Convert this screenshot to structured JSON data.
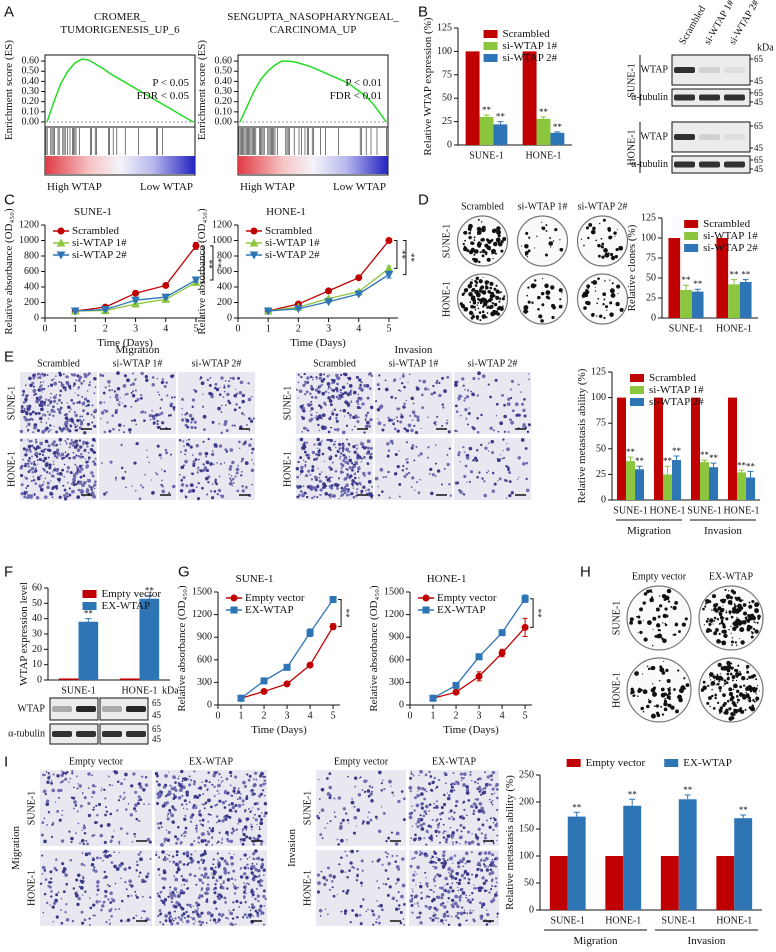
{
  "panel_letters": [
    "A",
    "B",
    "C",
    "D",
    "E",
    "F",
    "G",
    "H",
    "I"
  ],
  "chart_data": [
    {
      "type": "gsea",
      "title": [
        "CROMER_",
        "TUMORIGENESIS_UP_6"
      ],
      "y_label": "Enrichment score (ES)",
      "annotations": [
        "P < 0.05",
        "FDR < 0.05"
      ],
      "x_labels": [
        "High WTAP",
        "Low WTAP"
      ],
      "color": "#22dd22",
      "ylim": [
        -0.03,
        0.66
      ],
      "yticks": [
        {
          "value": 0,
          "label": "0.00"
        },
        {
          "value": 0.1,
          "label": "0.10"
        },
        {
          "value": 0.2,
          "label": "0.20"
        },
        {
          "value": 0.3,
          "label": "0.30"
        },
        {
          "value": 0.4,
          "label": "0.40"
        },
        {
          "value": 0.5,
          "label": "0.50"
        },
        {
          "value": 0.6,
          "label": "0.60"
        }
      ],
      "values": [
        0,
        0.2,
        0.38,
        0.5,
        0.58,
        0.62,
        0.61,
        0.57,
        0.53,
        0.48,
        0.44,
        0.4,
        0.36,
        0.32,
        0.28,
        0.24,
        0.2,
        0.16,
        0.12,
        0.08,
        0.04,
        0.0
      ]
    },
    {
      "type": "gsea",
      "title": [
        "SENGUPTA_NASOPHARYNGEAL_",
        "CARCINOMA_UP"
      ],
      "y_label": "Enrichment score (ES)",
      "annotations": [
        "P < 0.01",
        "FDR < 0.01"
      ],
      "x_labels": [
        "High WTAP",
        "Low WTAP"
      ],
      "color": "#22dd22",
      "ylim": [
        -0.03,
        0.66
      ],
      "yticks": [
        {
          "value": 0,
          "label": "0.00"
        },
        {
          "value": 0.1,
          "label": "0.10"
        },
        {
          "value": 0.2,
          "label": "0.20"
        },
        {
          "value": 0.3,
          "label": "0.30"
        },
        {
          "value": 0.4,
          "label": "0.40"
        },
        {
          "value": 0.5,
          "label": "0.50"
        },
        {
          "value": 0.6,
          "label": "0.60"
        }
      ],
      "values": [
        0,
        0.15,
        0.3,
        0.42,
        0.5,
        0.56,
        0.6,
        0.6,
        0.59,
        0.57,
        0.55,
        0.52,
        0.49,
        0.46,
        0.43,
        0.4,
        0.36,
        0.31,
        0.26,
        0.19,
        0.1,
        0.0
      ]
    },
    {
      "type": "bar",
      "y_label": "Relative WTAP expression (%)",
      "categories": [
        "SUNE-1",
        "HONE-1"
      ],
      "ylim": [
        0,
        125
      ],
      "yticks": [
        0,
        25,
        50,
        75,
        100,
        125
      ],
      "legend": "top-left",
      "series": [
        {
          "name": "Scrambled",
          "color": "#c00000",
          "values": [
            100,
            100
          ]
        },
        {
          "name": "si-WTAP 1#",
          "color": "#8cc63f",
          "values": [
            30,
            28
          ],
          "errors": [
            2,
            2
          ],
          "significance": [
            "**",
            "**"
          ]
        },
        {
          "name": "si-WTAP 2#",
          "color": "#2e75b6",
          "values": [
            22,
            13
          ],
          "errors": [
            3,
            1
          ],
          "significance": [
            "**",
            "**"
          ]
        }
      ]
    },
    {
      "type": "line",
      "title": "SUNE-1",
      "x_label": "Time (Days)",
      "y_label": "Relative absorbance (OD₄₅₀)",
      "x": [
        1,
        2,
        3,
        4,
        5
      ],
      "xlim": [
        0,
        5.3
      ],
      "xticks": [
        0,
        1,
        2,
        3,
        4,
        5
      ],
      "ylim": [
        0,
        1200
      ],
      "yticks": [
        0,
        200,
        400,
        600,
        800,
        1000,
        1200
      ],
      "legend": "top-left",
      "significance": [
        "**",
        "**"
      ],
      "series": [
        {
          "name": "Scrambled",
          "color": "#c00000",
          "marker": "circle",
          "values": [
            90,
            140,
            320,
            420,
            930
          ],
          "errors": [
            8,
            10,
            25,
            15,
            45
          ]
        },
        {
          "name": "si-WTAP 1#",
          "color": "#8cc63f",
          "marker": "triangle",
          "values": [
            90,
            95,
            180,
            240,
            460
          ],
          "errors": [
            8,
            8,
            12,
            15,
            20
          ]
        },
        {
          "name": "si-WTAP 2#",
          "color": "#2e75b6",
          "marker": "triangle-down",
          "values": [
            90,
            110,
            230,
            270,
            490
          ],
          "errors": [
            8,
            10,
            15,
            15,
            25
          ]
        }
      ]
    },
    {
      "type": "line",
      "title": "HONE-1",
      "x_label": "Time (Days)",
      "y_label": "Relative absorbance (OD₄₅₀)",
      "x": [
        1,
        2,
        3,
        4,
        5
      ],
      "xlim": [
        0,
        5.3
      ],
      "xticks": [
        0,
        1,
        2,
        3,
        4,
        5
      ],
      "ylim": [
        0,
        1200
      ],
      "yticks": [
        0,
        200,
        400,
        600,
        800,
        1000,
        1200
      ],
      "legend": "top-left",
      "significance": [
        "**",
        "**"
      ],
      "series": [
        {
          "name": "Scrambled",
          "color": "#c00000",
          "marker": "circle",
          "values": [
            90,
            180,
            350,
            520,
            1000
          ],
          "errors": [
            8,
            10,
            15,
            15,
            15
          ]
        },
        {
          "name": "si-WTAP 1#",
          "color": "#8cc63f",
          "marker": "triangle",
          "values": [
            90,
            140,
            250,
            340,
            640
          ],
          "errors": [
            8,
            10,
            12,
            15,
            30
          ]
        },
        {
          "name": "si-WTAP 2#",
          "color": "#2e75b6",
          "marker": "triangle-down",
          "values": [
            90,
            120,
            210,
            310,
            560
          ],
          "errors": [
            8,
            10,
            12,
            15,
            45
          ]
        }
      ]
    },
    {
      "type": "bar",
      "y_label": "Relative clones (%)",
      "categories": [
        "SUNE-1",
        "HONE-1"
      ],
      "ylim": [
        0,
        125
      ],
      "yticks": [
        0,
        25,
        50,
        75,
        100,
        125
      ],
      "legend": "top-left",
      "series": [
        {
          "name": "Scrambled",
          "color": "#c00000",
          "values": [
            100,
            100
          ]
        },
        {
          "name": "si-WTAP 1#",
          "color": "#8cc63f",
          "values": [
            35,
            42
          ],
          "errors": [
            6,
            6
          ],
          "significance": [
            "**",
            "**"
          ]
        },
        {
          "name": "si-WTAP 2#",
          "color": "#2e75b6",
          "values": [
            33,
            45
          ],
          "errors": [
            3,
            3
          ],
          "significance": [
            "**",
            "**"
          ]
        }
      ]
    },
    {
      "type": "bar",
      "y_label": "Relative metastasis ability (%)",
      "categories": [
        "SUNE-1",
        "HONE-1",
        "SUNE-1",
        "HONE-1"
      ],
      "group_labels": [
        "Migration",
        "Invasion"
      ],
      "ylim": [
        0,
        125
      ],
      "yticks": [
        0,
        25,
        50,
        75,
        100,
        125
      ],
      "legend": "top-left",
      "series": [
        {
          "name": "Scrambled",
          "color": "#c00000",
          "values": [
            100,
            100,
            100,
            100
          ]
        },
        {
          "name": "si-WTAP 1#",
          "color": "#8cc63f",
          "values": [
            38,
            25,
            37,
            27
          ],
          "errors": [
            4,
            8,
            2,
            2
          ],
          "significance": [
            "**",
            "**",
            "**",
            "**"
          ]
        },
        {
          "name": "si-WTAP 2#",
          "color": "#2e75b6",
          "values": [
            30,
            39,
            32,
            22
          ],
          "errors": [
            3,
            4,
            4,
            6
          ],
          "significance": [
            "**",
            "**",
            "**",
            "**"
          ]
        }
      ]
    },
    {
      "type": "bar",
      "y_label": "WTAP expression level",
      "categories": [
        "SUNE-1",
        "HONE-1"
      ],
      "ylim": [
        0,
        60
      ],
      "yticks": [
        0,
        10,
        20,
        30,
        40,
        50,
        60
      ],
      "legend": "top-left",
      "series": [
        {
          "name": "Empty vector",
          "color": "#c00000",
          "values": [
            1,
            1
          ]
        },
        {
          "name": "EX-WTAP",
          "color": "#2e75b6",
          "values": [
            38,
            53
          ],
          "errors": [
            2,
            2
          ],
          "significance": [
            "**",
            "**"
          ]
        }
      ]
    },
    {
      "type": "line",
      "title": "SUNE-1",
      "x_label": "Time (Days)",
      "y_label": "Relative absorbance (OD₄₅₀)",
      "x": [
        1,
        2,
        3,
        4,
        5
      ],
      "xlim": [
        0,
        5.3
      ],
      "xticks": [
        0,
        1,
        2,
        3,
        4,
        5
      ],
      "ylim": [
        0,
        1500
      ],
      "yticks": [
        0,
        300,
        600,
        900,
        1200,
        1500
      ],
      "legend": "top-left",
      "significance": [
        "**"
      ],
      "series": [
        {
          "name": "Empty vector",
          "color": "#c00000",
          "marker": "circle",
          "values": [
            90,
            180,
            280,
            530,
            1040
          ],
          "errors": [
            8,
            8,
            12,
            15,
            40
          ]
        },
        {
          "name": "EX-WTAP",
          "color": "#2e75b6",
          "marker": "square",
          "values": [
            90,
            320,
            500,
            960,
            1400
          ],
          "errors": [
            8,
            10,
            15,
            50,
            40
          ]
        }
      ]
    },
    {
      "type": "line",
      "title": "HONE-1",
      "x_label": "Time (Days)",
      "y_label": "Relative absorbance (OD₄₅₀)",
      "x": [
        1,
        2,
        3,
        4,
        5
      ],
      "xlim": [
        0,
        5.3
      ],
      "xticks": [
        0,
        1,
        2,
        3,
        4,
        5
      ],
      "ylim": [
        0,
        1500
      ],
      "yticks": [
        0,
        300,
        600,
        900,
        1200,
        1500
      ],
      "legend": "top-left",
      "significance": [
        "**"
      ],
      "series": [
        {
          "name": "Empty vector",
          "color": "#c00000",
          "marker": "circle",
          "values": [
            90,
            170,
            380,
            690,
            1030
          ],
          "errors": [
            8,
            10,
            60,
            50,
            120
          ]
        },
        {
          "name": "EX-WTAP",
          "color": "#2e75b6",
          "marker": "square",
          "values": [
            90,
            260,
            640,
            960,
            1410
          ],
          "errors": [
            8,
            15,
            15,
            15,
            50
          ]
        }
      ]
    },
    {
      "type": "bar",
      "y_label": "Relative metastasis ability (%)",
      "categories": [
        "SUNE-1",
        "HONE-1",
        "SUNE-1",
        "HONE-1"
      ],
      "group_labels": [
        "Migration",
        "Invasion"
      ],
      "ylim": [
        0,
        250
      ],
      "yticks": [
        0,
        50,
        100,
        150,
        200,
        250
      ],
      "legend": "top",
      "series": [
        {
          "name": "Empty vector",
          "color": "#c00000",
          "values": [
            100,
            100,
            100,
            100
          ]
        },
        {
          "name": "EX-WTAP",
          "color": "#2e75b6",
          "values": [
            173,
            193,
            205,
            170
          ],
          "errors": [
            8,
            12,
            8,
            6
          ],
          "significance": [
            "**",
            "**",
            "**",
            "**"
          ]
        }
      ]
    }
  ],
  "image_panels": [
    {
      "columns": [
        "Scrambled",
        "si-WTAP 1#",
        "si-WTAP 2#"
      ],
      "rows": [
        "SUNE-1",
        "HONE-1"
      ]
    },
    {
      "heading": "Migration",
      "columns": [
        "Scrambled",
        "si-WTAP 1#",
        "si-WTAP 2#"
      ],
      "rows": [
        "SUNE-1",
        "HONE-1"
      ]
    },
    {
      "heading": "Invasion",
      "columns": [
        "Scrambled",
        "si-WTAP 1#",
        "si-WTAP 2#"
      ],
      "rows": [
        "SUNE-1",
        "HONE-1"
      ]
    },
    {
      "columns": [
        "Empty vector",
        "EX-WTAP"
      ],
      "rows": [
        "SUNE-1",
        "HONE-1"
      ]
    },
    {
      "heading": "Migration",
      "columns": [
        "Empty vector",
        "EX-WTAP"
      ],
      "rows": [
        "SUNE-1",
        "HONE-1"
      ]
    },
    {
      "heading": "Invasion",
      "columns": [
        "Empty vector",
        "EX-WTAP"
      ],
      "rows": [
        "SUNE-1",
        "HONE-1"
      ]
    }
  ],
  "blots": [
    {
      "unit": "kDa",
      "lanes": [
        "Scrambled",
        "si-WTAP 1#",
        "si-WTAP 2#"
      ],
      "cell_lines": [
        "SUNE-1",
        "HONE-1"
      ],
      "rows": [
        {
          "protein": "WTAP",
          "markers": [
            "65",
            "45"
          ]
        },
        {
          "protein": "α-tubulin",
          "markers": [
            "65",
            "45"
          ]
        }
      ]
    },
    {
      "unit": "kDa",
      "rows": [
        {
          "protein": "WTAP",
          "markers": [
            "65",
            "45"
          ]
        },
        {
          "protein": "α-tubulin",
          "markers": [
            "65",
            "45"
          ]
        }
      ]
    }
  ]
}
